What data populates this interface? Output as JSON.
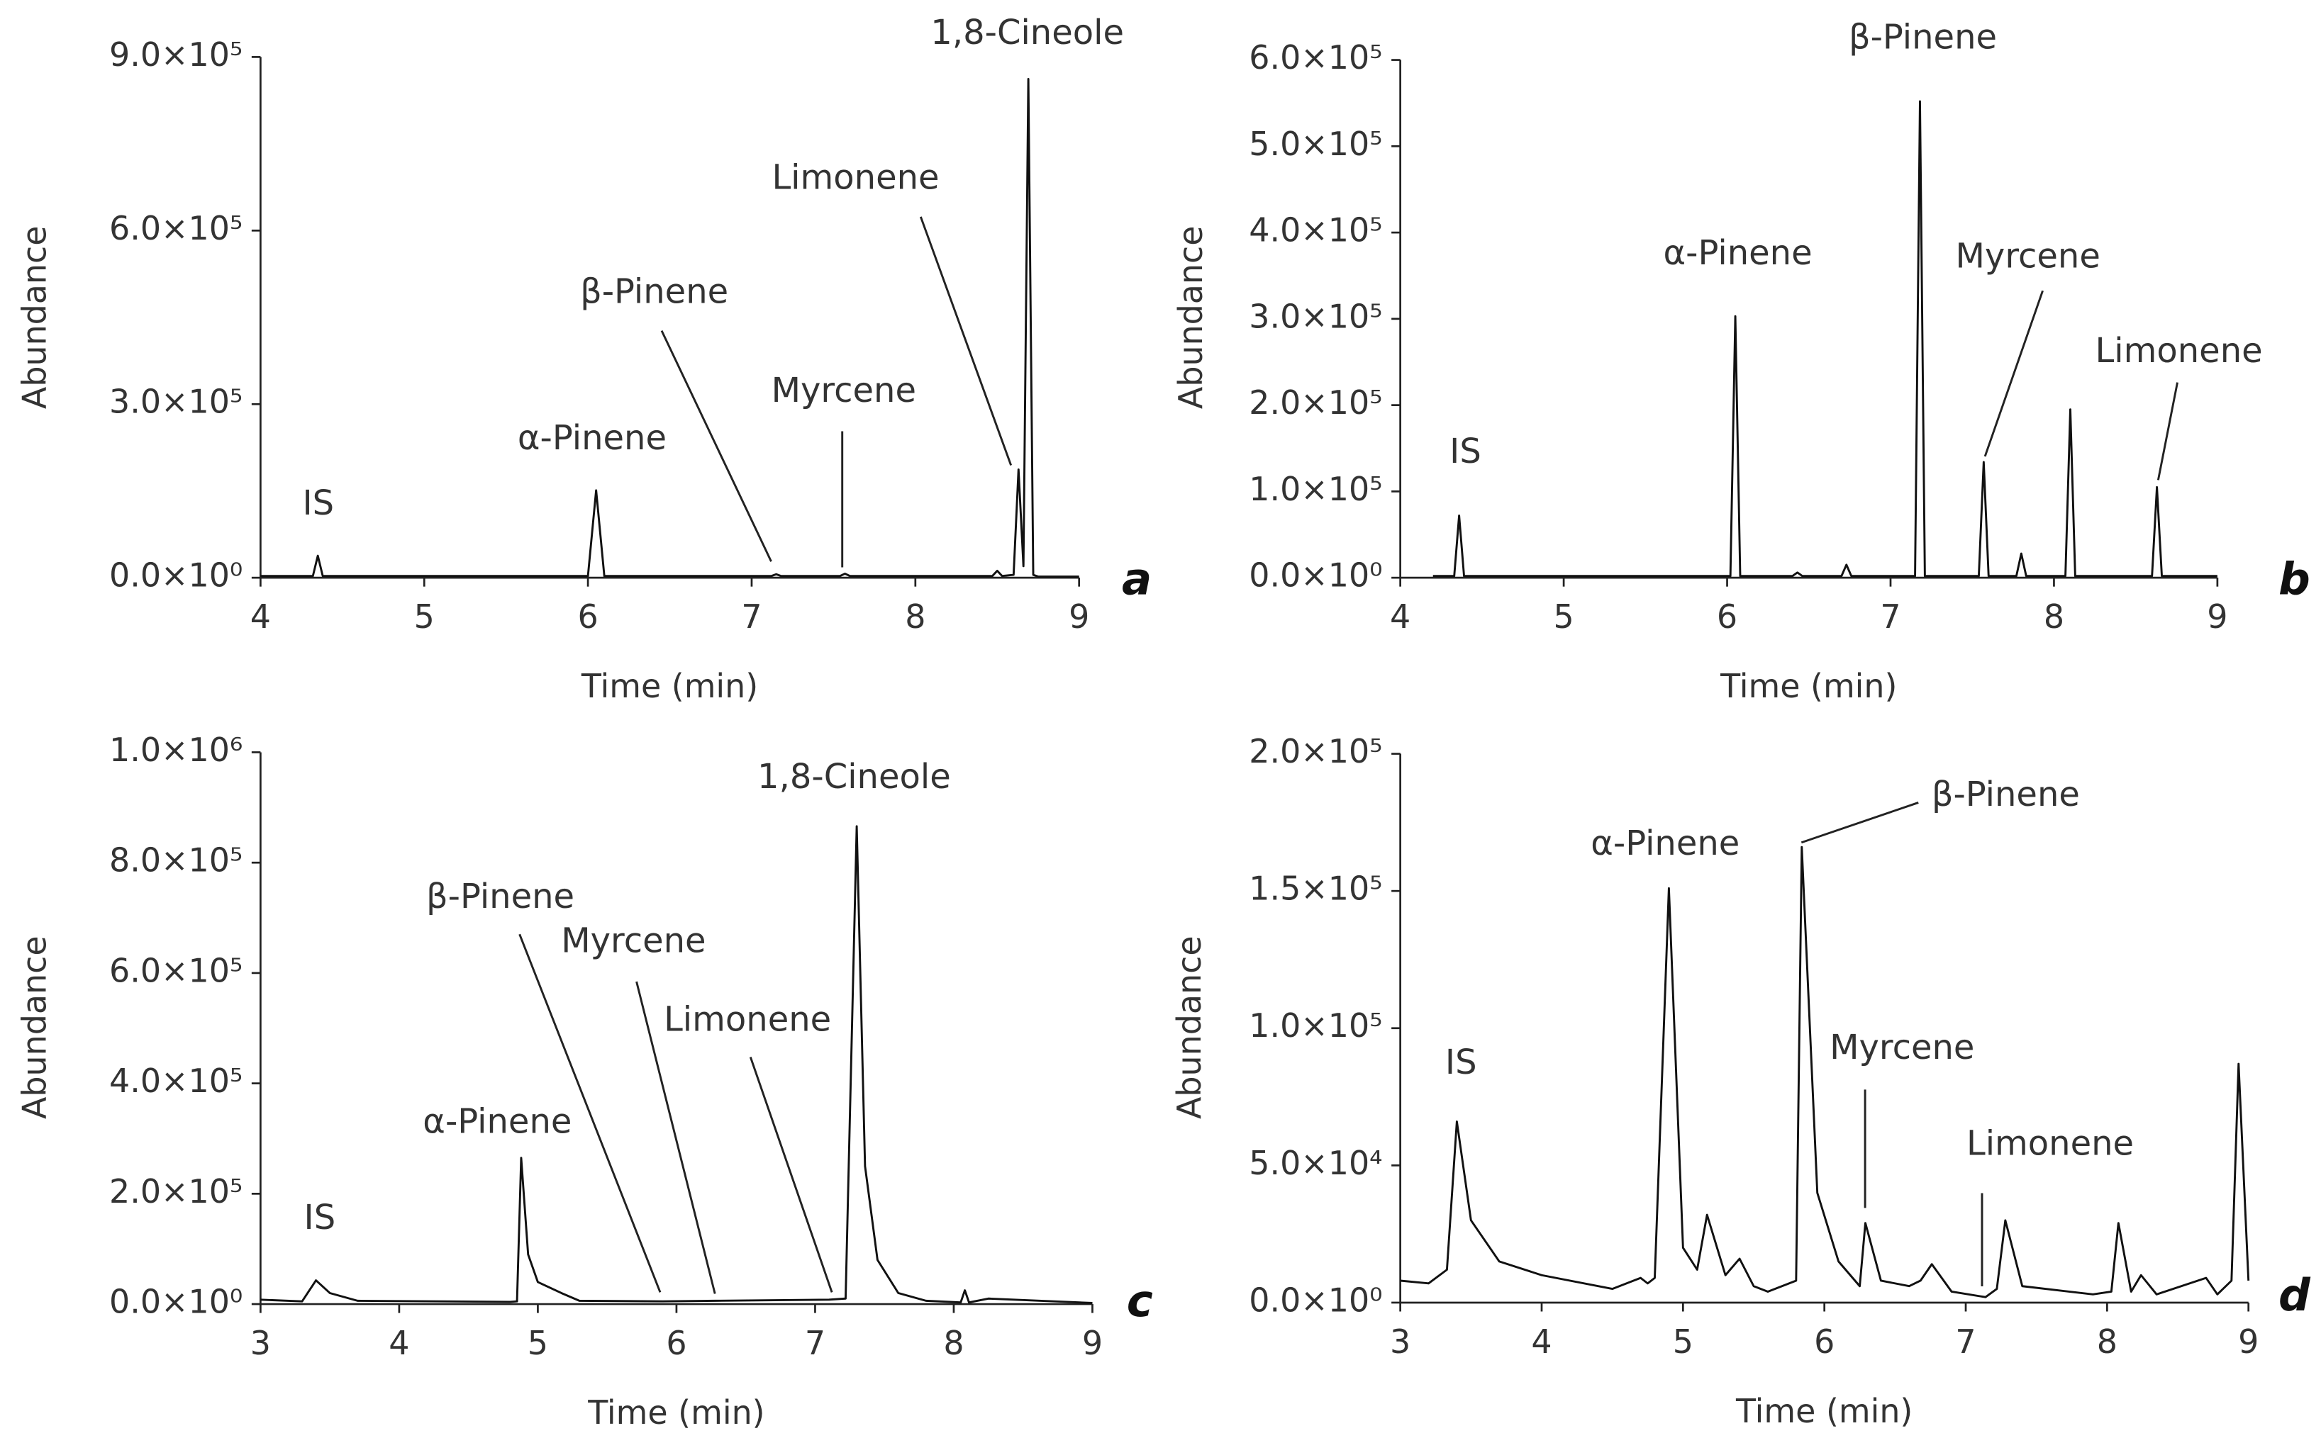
{
  "chart_data": [
    {
      "type": "line",
      "panel_label": "a",
      "x_label": "Time (min)",
      "y_label": "Abundance",
      "color": "#111111",
      "xlim": [
        4,
        9
      ],
      "xticks": [
        4,
        5,
        6,
        7,
        8,
        9
      ],
      "ylim": [
        0,
        900000
      ],
      "yticks": [
        {
          "value": 0,
          "label": "0.0×10⁰"
        },
        {
          "value": 300000,
          "label": "3.0×10⁵"
        },
        {
          "value": 600000,
          "label": "6.0×10⁵"
        },
        {
          "value": 900000,
          "label": "9.0×10⁵"
        }
      ],
      "x": [
        4.0,
        4.32,
        4.35,
        4.38,
        6.0,
        6.05,
        6.1,
        7.12,
        7.15,
        7.18,
        7.54,
        7.57,
        7.6,
        8.47,
        8.5,
        8.53,
        8.6,
        8.63,
        8.66,
        8.69,
        8.72,
        8.75,
        9.0
      ],
      "values": [
        3000,
        3000,
        38000,
        3000,
        3000,
        151000,
        3000,
        3000,
        6000,
        3000,
        3000,
        7000,
        3000,
        3000,
        12000,
        3000,
        5000,
        187000,
        20000,
        862000,
        5000,
        2000,
        2000
      ],
      "annotations": [
        {
          "text": "IS"
        },
        {
          "text": "α-Pinene"
        },
        {
          "text": "β-Pinene"
        },
        {
          "text": "Myrcene"
        },
        {
          "text": "Limonene"
        },
        {
          "text": "1,8-Cineole"
        }
      ]
    },
    {
      "type": "line",
      "panel_label": "b",
      "x_label": "Time (min)",
      "y_label": "Abundance",
      "color": "#111111",
      "xlim": [
        4,
        9
      ],
      "xticks": [
        4,
        5,
        6,
        7,
        8,
        9
      ],
      "ylim": [
        0,
        600000
      ],
      "yticks": [
        {
          "value": 0,
          "label": "0.0×10⁰"
        },
        {
          "value": 100000,
          "label": "1.0×10⁵"
        },
        {
          "value": 200000,
          "label": "2.0×10⁵"
        },
        {
          "value": 300000,
          "label": "3.0×10⁵"
        },
        {
          "value": 400000,
          "label": "4.0×10⁵"
        },
        {
          "value": 500000,
          "label": "5.0×10⁵"
        },
        {
          "value": 600000,
          "label": "6.0×10⁵"
        }
      ],
      "x": [
        4.2,
        4.33,
        4.36,
        4.39,
        6.02,
        6.05,
        6.08,
        6.4,
        6.43,
        6.46,
        6.7,
        6.73,
        6.76,
        7.15,
        7.18,
        7.21,
        7.54,
        7.57,
        7.6,
        7.77,
        7.8,
        7.83,
        8.07,
        8.1,
        8.13,
        8.6,
        8.63,
        8.66,
        9.0
      ],
      "values": [
        2000,
        2000,
        72000,
        2000,
        2000,
        303000,
        2000,
        2000,
        6000,
        2000,
        2000,
        15000,
        2000,
        2000,
        552000,
        2000,
        2000,
        134000,
        2000,
        2000,
        28000,
        2000,
        2000,
        195000,
        2000,
        2000,
        105000,
        2000,
        2000
      ],
      "annotations": [
        {
          "text": "IS"
        },
        {
          "text": "α-Pinene"
        },
        {
          "text": "β-Pinene"
        },
        {
          "text": "Myrcene"
        },
        {
          "text": "Limonene"
        }
      ]
    },
    {
      "type": "line",
      "panel_label": "c",
      "x_label": "Time (min)",
      "y_label": "Abundance",
      "color": "#111111",
      "xlim": [
        3,
        9
      ],
      "xticks": [
        3,
        4,
        5,
        6,
        7,
        8,
        9
      ],
      "ylim": [
        0,
        1000000
      ],
      "yticks": [
        {
          "value": 0,
          "label": "0.0×10⁰"
        },
        {
          "value": 200000,
          "label": "2.0×10⁵"
        },
        {
          "value": 400000,
          "label": "4.0×10⁵"
        },
        {
          "value": 600000,
          "label": "6.0×10⁵"
        },
        {
          "value": 800000,
          "label": "8.0×10⁵"
        },
        {
          "value": 1000000,
          "label": "1.0×10⁶"
        }
      ],
      "x": [
        3.0,
        3.3,
        3.4,
        3.5,
        3.7,
        4.8,
        4.85,
        4.88,
        4.93,
        5.0,
        5.17,
        5.3,
        5.9,
        6.28,
        7.1,
        7.22,
        7.3,
        7.36,
        7.45,
        7.6,
        7.8,
        8.05,
        8.08,
        8.11,
        8.25,
        9.0
      ],
      "values": [
        8000,
        5000,
        43000,
        20000,
        6000,
        4000,
        5000,
        265000,
        90000,
        40000,
        20000,
        6000,
        5000,
        6000,
        8000,
        10000,
        866000,
        250000,
        80000,
        20000,
        6000,
        3000,
        25000,
        3000,
        10000,
        2000
      ],
      "annotations": [
        {
          "text": "IS"
        },
        {
          "text": "α-Pinene"
        },
        {
          "text": "β-Pinene"
        },
        {
          "text": "Myrcene"
        },
        {
          "text": "Limonene"
        },
        {
          "text": "1,8-Cineole"
        }
      ]
    },
    {
      "type": "line",
      "panel_label": "d",
      "x_label": "Time (min)",
      "y_label": "Abundance",
      "color": "#111111",
      "xlim": [
        3,
        9
      ],
      "xticks": [
        3,
        4,
        5,
        6,
        7,
        8,
        9
      ],
      "ylim": [
        0,
        200000
      ],
      "yticks": [
        {
          "value": 0,
          "label": "0.0×10⁰"
        },
        {
          "value": 50000,
          "label": "5.0×10⁴"
        },
        {
          "value": 100000,
          "label": "1.0×10⁵"
        },
        {
          "value": 150000,
          "label": "1.5×10⁵"
        },
        {
          "value": 200000,
          "label": "2.0×10⁵"
        }
      ],
      "x": [
        3.0,
        3.2,
        3.33,
        3.4,
        3.5,
        3.7,
        4.0,
        4.5,
        4.7,
        4.75,
        4.8,
        4.9,
        5.0,
        5.1,
        5.17,
        5.3,
        5.4,
        5.5,
        5.6,
        5.8,
        5.84,
        5.95,
        6.1,
        6.25,
        6.29,
        6.4,
        6.6,
        6.68,
        6.76,
        6.9,
        7.14,
        7.22,
        7.28,
        7.4,
        7.9,
        8.03,
        8.08,
        8.17,
        8.24,
        8.35,
        8.7,
        8.78,
        8.88,
        8.93,
        9.0
      ],
      "values": [
        8000,
        7000,
        12000,
        66000,
        30000,
        15000,
        10000,
        5000,
        9000,
        7000,
        9000,
        151000,
        20000,
        12000,
        32000,
        10000,
        16000,
        6000,
        4000,
        8000,
        166000,
        40000,
        15000,
        6000,
        29000,
        8000,
        6000,
        8000,
        14000,
        4000,
        2000,
        5000,
        30000,
        6000,
        3000,
        4000,
        29000,
        4000,
        10000,
        3000,
        9000,
        3000,
        8000,
        87000,
        8000
      ],
      "annotations": [
        {
          "text": "IS"
        },
        {
          "text": "α-Pinene"
        },
        {
          "text": "β-Pinene"
        },
        {
          "text": "Myrcene"
        },
        {
          "text": "Limonene"
        }
      ]
    }
  ]
}
